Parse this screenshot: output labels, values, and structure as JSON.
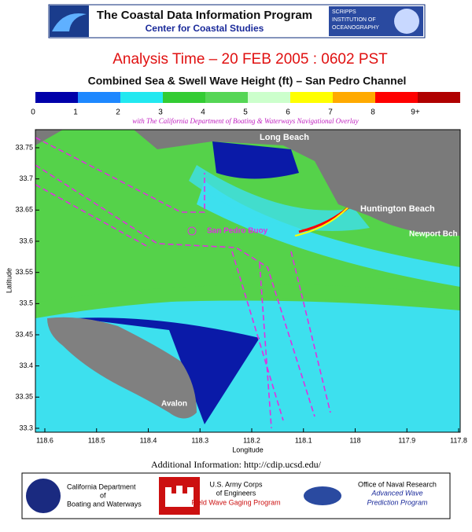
{
  "header": {
    "title": "The Coastal Data Information Program",
    "subtitle": "Center for Coastal Studies",
    "logo": [
      "SCRIPPS",
      "INSTITUTION OF",
      "OCEANOGRAPHY"
    ]
  },
  "analysis_time": "Analysis Time –  20 FEB 2005 : 0602 PST",
  "map_title": "Combined Sea & Swell Wave Height (ft) – San Pedro Channel",
  "colorbar": {
    "labels": [
      "0",
      "1",
      "2",
      "3",
      "4",
      "5",
      "6",
      "7",
      "8",
      "9+"
    ],
    "colors": [
      "#0000aa",
      "#1e88ff",
      "#22e8f0",
      "#33cc33",
      "#55d655",
      "#ccffcc",
      "#ffff00",
      "#ffaa00",
      "#ff0000",
      "#b00000"
    ]
  },
  "overlay_note": "with The California Department of Boating & Waterways Navigational Overlay",
  "map": {
    "y_axis_label": "Latitude",
    "x_axis_label": "Longitude",
    "yticks": [
      "33.75",
      "33.7",
      "33.65",
      "33.6",
      "33.55",
      "33.5",
      "33.45",
      "33.4",
      "33.35",
      "33.3"
    ],
    "xticks": [
      "118.6",
      "118.5",
      "118.4",
      "118.3",
      "118.2",
      "118.1",
      "118",
      "117.9",
      "117.8"
    ],
    "places": [
      "Long Beach",
      "Huntington Beach",
      "Newport Bch",
      "San Pedro Buoy",
      "Avalon"
    ]
  },
  "footer": {
    "info": "Additional Information: http://cdip.ucsd.edu/",
    "dbw": [
      "California Department",
      "of",
      "Boating and Waterways"
    ],
    "usace": [
      "U.S. Army Corps",
      "of Engineers",
      "Field Wave Gaging Program"
    ],
    "onr": [
      "Office of Naval Research",
      "Advanced Wave",
      "Prediction Program"
    ]
  }
}
